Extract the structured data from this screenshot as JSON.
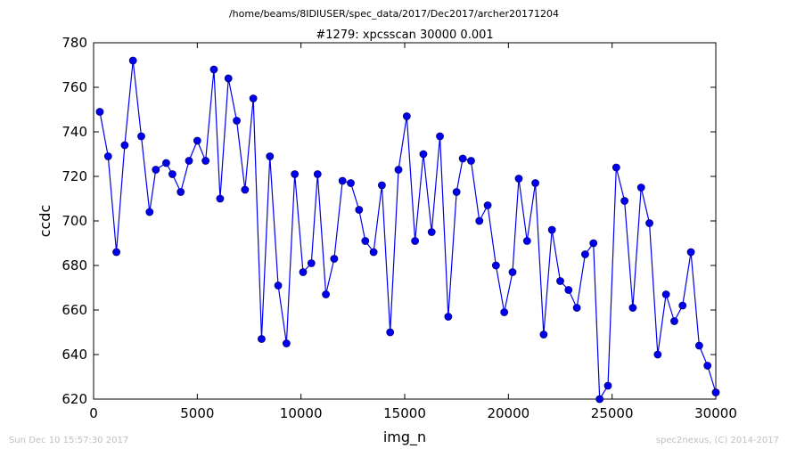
{
  "page": {
    "path_title": "/home/beams/8IDIUSER/spec_data/2017/Dec2017/archer20171204",
    "footer_left": "Sun Dec 10 15:57:30 2017",
    "footer_right": "spec2nexus, (C) 2014-2017"
  },
  "colors": {
    "line": "#0000ee",
    "marker_fill": "#0000ee",
    "marker_edge": "#000080",
    "footer_text": "#bfbfbf",
    "axis": "#000000"
  },
  "chart_data": {
    "type": "line",
    "title": "#1279: xpcsscan 30000 0.001",
    "xlabel": "img_n",
    "ylabel": "ccdc",
    "xlim": [
      0,
      30000
    ],
    "ylim": [
      620,
      780
    ],
    "grid": false,
    "x_ticks": [
      0,
      5000,
      10000,
      15000,
      20000,
      25000,
      30000
    ],
    "y_ticks": [
      620,
      640,
      660,
      680,
      700,
      720,
      740,
      760,
      780
    ],
    "x_tick_labels": [
      "0",
      "5000",
      "10000",
      "15000",
      "20000",
      "25000",
      "30000"
    ],
    "y_tick_labels": [
      "620",
      "640",
      "660",
      "680",
      "700",
      "720",
      "740",
      "760",
      "780"
    ],
    "series": [
      {
        "x": [
          300,
          700,
          1100,
          1500,
          1900,
          2300,
          2700,
          3000,
          3500,
          3800,
          4200,
          4600,
          5000,
          5400,
          5800,
          6100,
          6500,
          6900,
          7300,
          7700,
          8100,
          8500,
          8900,
          9300,
          9700,
          10100,
          10500,
          10800,
          11200,
          11600,
          12000,
          12400,
          12800,
          13100,
          13500,
          13900,
          14300,
          14700,
          15100,
          15500,
          15900,
          16300,
          16700,
          17100,
          17500,
          17800,
          18200,
          18600,
          19000,
          19400,
          19800,
          20200,
          20500,
          20900,
          21300,
          21700,
          22100,
          22500,
          22900,
          23300,
          23700,
          24100,
          24400,
          24800,
          25200,
          25600,
          26000,
          26400,
          26800,
          27200,
          27600,
          28000,
          28400,
          28800,
          29200,
          29600,
          30000
        ],
        "y": [
          749,
          729,
          686,
          734,
          772,
          738,
          704,
          723,
          726,
          721,
          713,
          727,
          736,
          727,
          768,
          710,
          764,
          745,
          714,
          755,
          647,
          729,
          671,
          645,
          721,
          677,
          681,
          721,
          667,
          683,
          718,
          717,
          705,
          691,
          686,
          716,
          650,
          723,
          747,
          691,
          730,
          695,
          738,
          657,
          713,
          728,
          727,
          700,
          707,
          680,
          659,
          677,
          719,
          691,
          717,
          649,
          696,
          673,
          669,
          661,
          685,
          690,
          620,
          626,
          724,
          709,
          661,
          715,
          699,
          640,
          667,
          655,
          662,
          686,
          644,
          635,
          623
        ]
      }
    ]
  }
}
